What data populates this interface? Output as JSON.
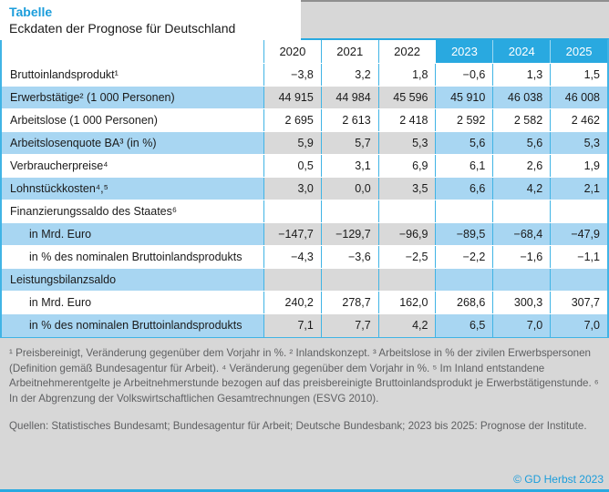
{
  "title": {
    "kicker": "Tabelle",
    "heading": "Eckdaten der Prognose für Deutschland"
  },
  "colors": {
    "accent_blue": "#29a9e0",
    "row_blue": "#a8d6f2",
    "hist_grey": "#d9d9d9",
    "page_grey": "#d7d7d7",
    "title_blue": "#1b9ddb",
    "footnote_grey": "#5f6062"
  },
  "table": {
    "year_columns": [
      "2020",
      "2021",
      "2022",
      "2023",
      "2024",
      "2025"
    ],
    "forecast_years": [
      "2023",
      "2024",
      "2025"
    ],
    "rows": [
      {
        "label": "Bruttoinlandsprodukt¹",
        "values": [
          "−3,8",
          "3,2",
          "1,8",
          "−0,6",
          "1,3",
          "1,5"
        ]
      },
      {
        "label": "Erwerbstätige² (1 000 Personen)",
        "values": [
          "44 915",
          "44 984",
          "45 596",
          "45 910",
          "46 038",
          "46 008"
        ]
      },
      {
        "label": "Arbeitslose (1 000 Personen)",
        "values": [
          "2 695",
          "2 613",
          "2 418",
          "2 592",
          "2 582",
          "2 462"
        ]
      },
      {
        "label": "Arbeitslosenquote BA³ (in %)",
        "values": [
          "5,9",
          "5,7",
          "5,3",
          "5,6",
          "5,6",
          "5,3"
        ]
      },
      {
        "label": "Verbraucherpreise⁴",
        "values": [
          "0,5",
          "3,1",
          "6,9",
          "6,1",
          "2,6",
          "1,9"
        ]
      },
      {
        "label": "Lohnstückkosten⁴,⁵",
        "values": [
          "3,0",
          "0,0",
          "3,5",
          "6,6",
          "4,2",
          "2,1"
        ]
      },
      {
        "label": "Finanzierungssaldo des Staates⁶",
        "values": [
          "",
          "",
          "",
          "",
          "",
          ""
        ]
      },
      {
        "label": "in Mrd. Euro",
        "values": [
          "−147,7",
          "−129,7",
          "−96,9",
          "−89,5",
          "−68,4",
          "−47,9"
        ]
      },
      {
        "label": "in % des nominalen Bruttoinlandsprodukts",
        "values": [
          "−4,3",
          "−3,6",
          "−2,5",
          "−2,2",
          "−1,6",
          "−1,1"
        ]
      },
      {
        "label": "Leistungsbilanzsaldo",
        "values": [
          "",
          "",
          "",
          "",
          "",
          ""
        ]
      },
      {
        "label": "in Mrd. Euro",
        "values": [
          "240,2",
          "278,7",
          "162,0",
          "268,6",
          "300,3",
          "307,7"
        ]
      },
      {
        "label": "in % des nominalen Bruttoinlandsprodukts",
        "values": [
          "7,1",
          "7,7",
          "4,2",
          "6,5",
          "7,0",
          "7,0"
        ]
      }
    ]
  },
  "notes": {
    "footnotes": "¹ Preisbereinigt, Veränderung gegenüber dem Vorjahr in %. ² Inlandskonzept. ³ Arbeitslose in % der zivilen Erwerbspersonen (Definition gemäß Bundesagentur für Arbeit). ⁴ Veränderung gegenüber dem Vorjahr in %. ⁵ Im Inland entstandene Arbeitnehmerentgelte je Arbeitnehmerstunde bezogen auf das preisbereinigte Bruttoinlandsprodukt je Erwerbstätigenstunde. ⁶ In der Abgrenzung der Volkswirtschaftlichen Gesamtrechnungen (ESVG 2010).",
    "sources": "Quellen: Statistisches Bundesamt; Bundesagentur für Arbeit; Deutsche Bundesbank; 2023 bis 2025: Prognose der Institute.",
    "copyright": "© GD Herbst 2023"
  }
}
